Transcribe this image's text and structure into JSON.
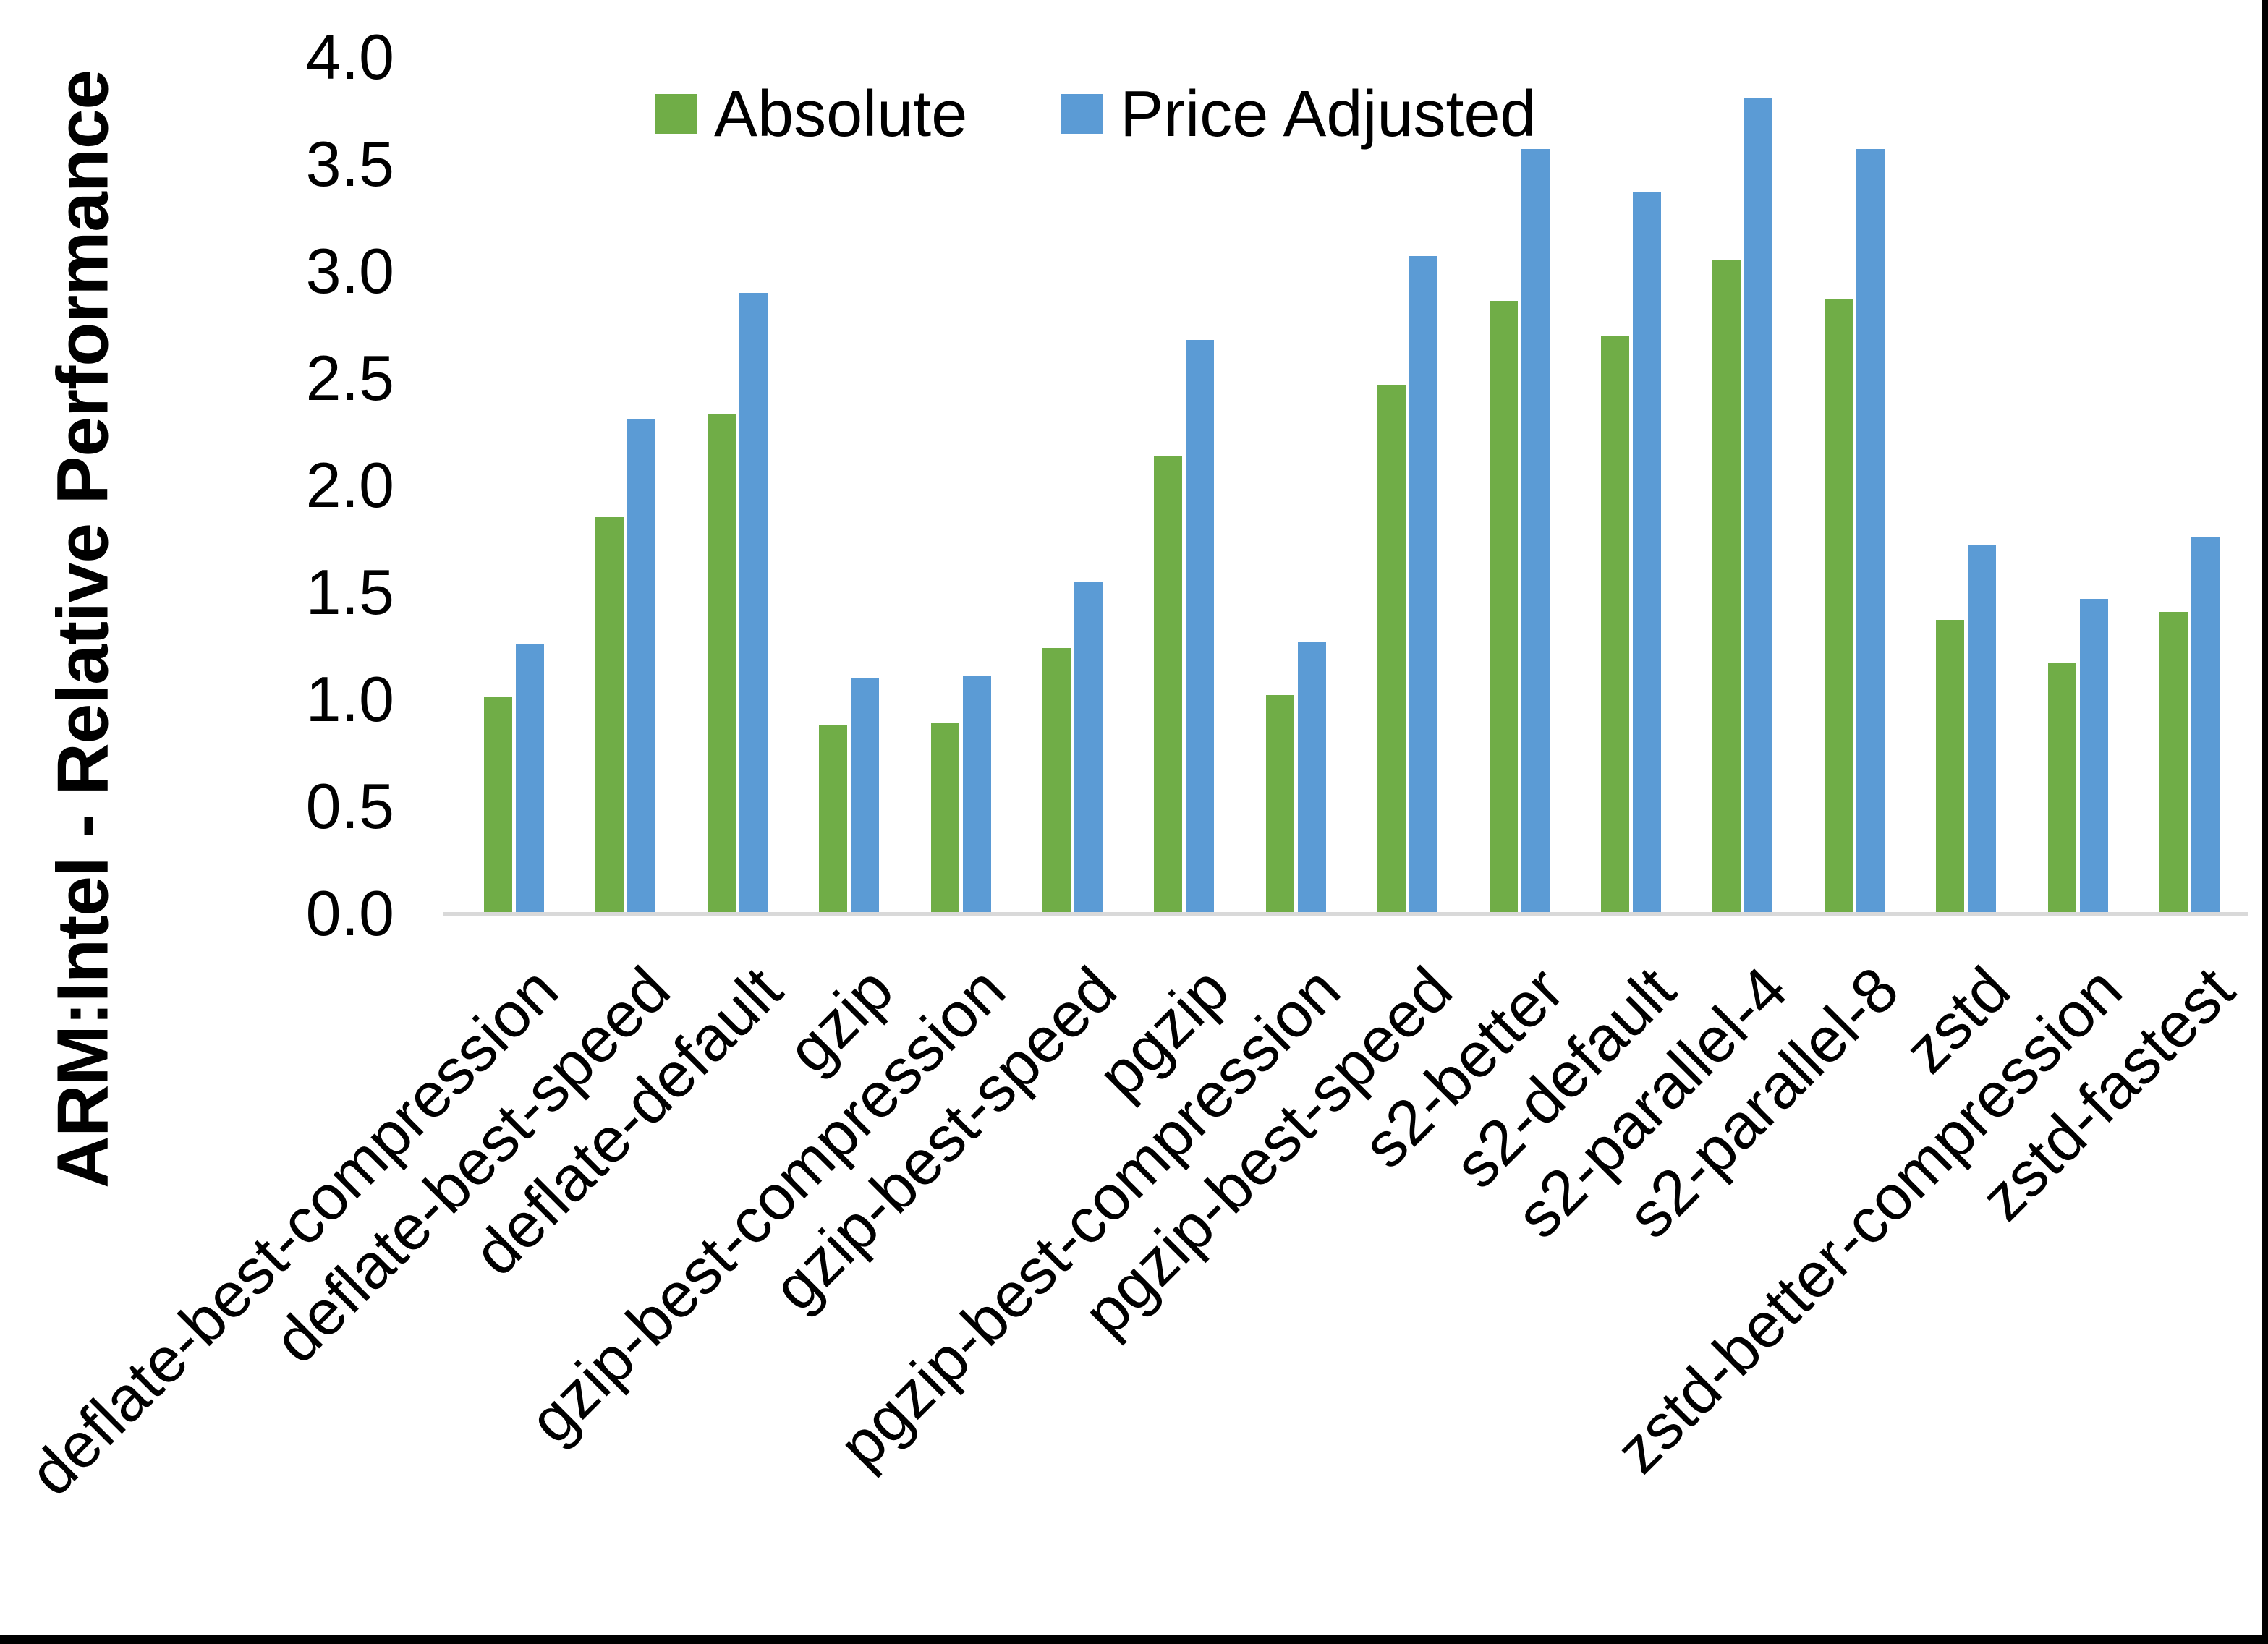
{
  "chart_data": {
    "type": "bar",
    "title": "",
    "xlabel": "",
    "ylabel": "ARM:Intel - Relative Performance",
    "ylim": [
      0.0,
      4.0
    ],
    "ytick_step": 0.5,
    "ytick_labels": [
      "0.0",
      "0.5",
      "1.0",
      "1.5",
      "2.0",
      "2.5",
      "3.0",
      "3.5",
      "4.0"
    ],
    "grid": false,
    "legend_position": "top-center",
    "background_color": "#ffffff",
    "axis_line_color": "#d9d9d9",
    "text_color": "#000000",
    "categories": [
      "deflate-best-compression",
      "deflate-best-speed",
      "deflate-default",
      "gzip",
      "gzip-best-compression",
      "gzip-best-speed",
      "pgzip",
      "pgzip-best-compression",
      "pgzip-best-speed",
      "s2-better",
      "s2-default",
      "s2-parallel-4",
      "s2-parallel-8",
      "zstd",
      "zstd-better-compression",
      "zstd-fastest"
    ],
    "series": [
      {
        "name": "Absolute",
        "color": "#70ad47",
        "values": [
          1.01,
          1.85,
          2.33,
          0.88,
          0.89,
          1.24,
          2.14,
          1.02,
          2.47,
          2.86,
          2.7,
          3.05,
          2.87,
          1.37,
          1.17,
          1.41
        ]
      },
      {
        "name": "Price Adjusted",
        "color": "#5b9bd5",
        "values": [
          1.26,
          2.31,
          2.9,
          1.1,
          1.11,
          1.55,
          2.68,
          1.27,
          3.07,
          3.57,
          3.37,
          3.81,
          3.57,
          1.72,
          1.47,
          1.76
        ]
      }
    ],
    "frame_border_color": "#000000"
  }
}
